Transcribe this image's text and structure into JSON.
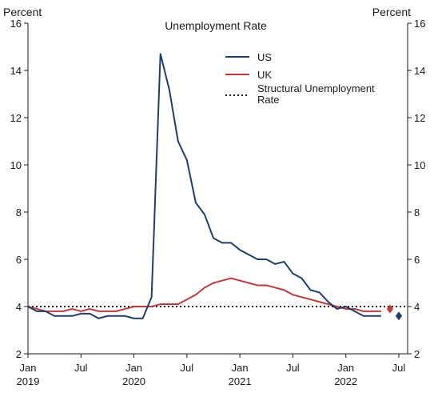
{
  "chart_data": {
    "type": "line",
    "title": "Unemployment Rate",
    "y_unit_left": "Percent",
    "y_unit_right": "Percent",
    "ylim": [
      2,
      16
    ],
    "y_ticks": [
      2,
      4,
      6,
      8,
      10,
      12,
      14,
      16
    ],
    "x_range": [
      "2019-01",
      "2022-08"
    ],
    "x_ticks": [
      {
        "date": "2019-01",
        "label": "Jan",
        "year": "2019"
      },
      {
        "date": "2019-07",
        "label": "Jul",
        "year": ""
      },
      {
        "date": "2020-01",
        "label": "Jan",
        "year": "2020"
      },
      {
        "date": "2020-07",
        "label": "Jul",
        "year": ""
      },
      {
        "date": "2021-01",
        "label": "Jan",
        "year": "2021"
      },
      {
        "date": "2021-07",
        "label": "Jul",
        "year": ""
      },
      {
        "date": "2022-01",
        "label": "Jan",
        "year": "2022"
      },
      {
        "date": "2022-07",
        "label": "Jul",
        "year": ""
      }
    ],
    "grid": false,
    "legend_position": "top-right",
    "series": [
      {
        "name": "US",
        "color": "#1f3d6b",
        "style": "solid",
        "x": [
          "2019-01",
          "2019-02",
          "2019-03",
          "2019-04",
          "2019-05",
          "2019-06",
          "2019-07",
          "2019-08",
          "2019-09",
          "2019-10",
          "2019-11",
          "2019-12",
          "2020-01",
          "2020-02",
          "2020-03",
          "2020-04",
          "2020-05",
          "2020-06",
          "2020-07",
          "2020-08",
          "2020-09",
          "2020-10",
          "2020-11",
          "2020-12",
          "2021-01",
          "2021-02",
          "2021-03",
          "2021-04",
          "2021-05",
          "2021-06",
          "2021-07",
          "2021-08",
          "2021-09",
          "2021-10",
          "2021-11",
          "2021-12",
          "2022-01",
          "2022-02",
          "2022-03",
          "2022-04",
          "2022-05"
        ],
        "values": [
          4.0,
          3.8,
          3.8,
          3.6,
          3.6,
          3.6,
          3.7,
          3.7,
          3.5,
          3.6,
          3.6,
          3.6,
          3.5,
          3.5,
          4.4,
          14.7,
          13.2,
          11.0,
          10.2,
          8.4,
          7.9,
          6.9,
          6.7,
          6.7,
          6.4,
          6.2,
          6.0,
          6.0,
          5.8,
          5.9,
          5.4,
          5.2,
          4.7,
          4.6,
          4.2,
          3.9,
          4.0,
          3.8,
          3.6,
          3.6,
          3.6
        ]
      },
      {
        "name": "UK",
        "color": "#c43a3a",
        "style": "solid",
        "x": [
          "2019-01",
          "2019-02",
          "2019-03",
          "2019-04",
          "2019-05",
          "2019-06",
          "2019-07",
          "2019-08",
          "2019-09",
          "2019-10",
          "2019-11",
          "2019-12",
          "2020-01",
          "2020-02",
          "2020-03",
          "2020-04",
          "2020-05",
          "2020-06",
          "2020-07",
          "2020-08",
          "2020-09",
          "2020-10",
          "2020-11",
          "2020-12",
          "2021-01",
          "2021-02",
          "2021-03",
          "2021-04",
          "2021-05",
          "2021-06",
          "2021-07",
          "2021-08",
          "2021-09",
          "2021-10",
          "2021-11",
          "2021-12",
          "2022-01",
          "2022-02",
          "2022-03",
          "2022-04",
          "2022-05"
        ],
        "values": [
          4.0,
          3.9,
          3.8,
          3.8,
          3.8,
          3.9,
          3.8,
          3.9,
          3.8,
          3.8,
          3.8,
          3.9,
          4.0,
          4.0,
          4.0,
          4.1,
          4.1,
          4.1,
          4.3,
          4.5,
          4.8,
          5.0,
          5.1,
          5.2,
          5.1,
          5.0,
          4.9,
          4.9,
          4.8,
          4.7,
          4.5,
          4.4,
          4.3,
          4.2,
          4.1,
          4.0,
          3.9,
          3.9,
          3.8,
          3.8,
          3.8
        ]
      },
      {
        "name": "Structural Unemployment Rate",
        "color": "#1a1a1a",
        "style": "dotted",
        "x": [
          "2019-01",
          "2022-08"
        ],
        "values": [
          4.0,
          4.0
        ]
      }
    ],
    "markers": [
      {
        "series": "UK",
        "date": "2022-06",
        "value": 3.9,
        "shape": "diamond",
        "color": "#c43a3a"
      },
      {
        "series": "US",
        "date": "2022-07",
        "value": 3.6,
        "shape": "diamond",
        "color": "#1f3d6b"
      }
    ]
  }
}
